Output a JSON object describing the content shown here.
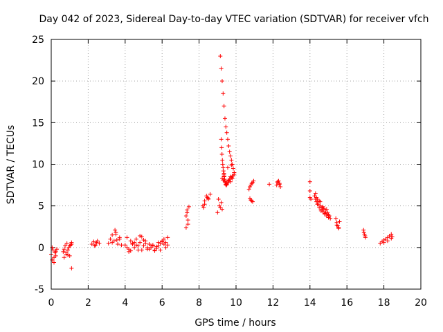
{
  "chart_data": {
    "type": "scatter",
    "title": "Day 042 of 2023, Sidereal Day-to-day VTEC variation (SDTVAR) for receiver vfch",
    "xlabel": "GPS time / hours",
    "ylabel": "SDTVAR / TECUs",
    "xlim": [
      0,
      20
    ],
    "ylim": [
      -5,
      25
    ],
    "x_ticks": [
      "0",
      "2",
      "4",
      "6",
      "8",
      "10",
      "12",
      "14",
      "16",
      "18",
      "20"
    ],
    "y_ticks": [
      "-5",
      "0",
      "5",
      "10",
      "15",
      "20",
      "25"
    ],
    "grid": true,
    "marker": "+",
    "color": "#ff0000",
    "series": [
      {
        "name": "SDTVAR",
        "x": [
          0.0,
          0.05,
          0.1,
          0.15,
          0.2,
          0.25,
          0.3,
          0.05,
          0.15,
          0.25,
          0.65,
          0.7,
          0.75,
          0.8,
          0.85,
          0.9,
          0.95,
          1.0,
          1.05,
          1.1,
          0.7,
          0.8,
          0.9,
          1.0,
          1.1,
          2.2,
          2.3,
          2.4,
          2.5,
          2.6,
          2.35,
          2.45,
          3.1,
          3.2,
          3.3,
          3.4,
          3.5,
          3.6,
          3.7,
          3.8,
          3.3,
          3.5,
          3.7,
          3.45,
          3.55,
          4.0,
          4.1,
          4.2,
          4.3,
          4.4,
          4.5,
          4.6,
          4.7,
          4.8,
          4.9,
          5.0,
          5.1,
          5.2,
          5.3,
          5.4,
          5.5,
          5.6,
          5.7,
          5.8,
          5.9,
          6.0,
          6.1,
          6.2,
          6.3,
          4.1,
          4.3,
          4.5,
          4.7,
          4.9,
          5.1,
          5.3,
          5.5,
          5.7,
          5.9,
          6.1,
          6.3,
          4.2,
          4.6,
          5.0,
          5.4,
          5.8,
          6.2,
          4.4,
          4.8,
          5.2,
          5.6,
          6.0,
          1.1,
          7.3,
          7.35,
          7.4,
          7.45,
          7.3,
          7.4,
          7.35,
          8.2,
          8.3,
          8.4,
          8.5,
          8.6,
          8.3,
          8.5,
          8.25,
          8.45,
          9.0,
          9.1,
          9.2,
          9.25,
          9.05,
          9.15,
          9.15,
          9.2,
          9.25,
          9.3,
          9.35,
          9.4,
          9.45,
          9.5,
          9.55,
          9.6,
          9.65,
          9.7,
          9.75,
          9.8,
          9.85,
          9.9,
          9.2,
          9.22,
          9.24,
          9.26,
          9.28,
          9.3,
          9.32,
          9.34,
          9.36,
          9.38,
          9.4,
          9.42,
          9.44,
          9.46,
          9.48,
          9.5,
          9.55,
          9.6,
          9.65,
          9.7,
          9.75,
          9.8,
          9.85,
          9.9,
          9.25,
          9.3,
          9.35,
          9.4,
          9.5,
          9.6,
          9.7,
          9.8,
          9.35,
          9.55,
          9.75,
          10.7,
          10.8,
          10.9,
          10.95,
          10.75,
          10.85,
          10.75,
          10.8,
          10.85,
          10.9,
          11.8,
          12.2,
          12.25,
          12.3,
          12.35,
          12.4,
          12.25,
          12.35,
          14.0,
          14.0,
          14.0,
          14.05,
          14.25,
          14.3,
          14.35,
          14.4,
          14.45,
          14.5,
          14.55,
          14.6,
          14.65,
          14.7,
          14.75,
          14.8,
          14.85,
          14.9,
          14.95,
          15.0,
          15.05,
          15.1,
          14.3,
          14.4,
          14.5,
          14.6,
          14.7,
          14.8,
          14.9,
          15.0,
          14.35,
          14.55,
          14.75,
          14.95,
          15.4,
          15.45,
          15.5,
          15.55,
          15.6,
          15.45,
          15.55,
          16.9,
          16.95,
          17.0,
          16.92,
          16.98,
          17.8,
          17.9,
          18.0,
          18.1,
          18.2,
          18.3,
          18.4,
          18.45,
          18.0,
          18.2,
          18.4
        ],
        "y": [
          -0.8,
          -1.5,
          -0.3,
          -1.8,
          -0.6,
          -1.0,
          -0.2,
          0.0,
          -1.2,
          -0.5,
          -0.5,
          -1.2,
          0.2,
          -0.8,
          0.5,
          -0.3,
          0.0,
          -1.0,
          0.3,
          0.6,
          -0.2,
          -0.6,
          -0.9,
          0.2,
          0.4,
          0.4,
          0.7,
          0.3,
          0.8,
          0.5,
          0.2,
          0.6,
          0.5,
          1.0,
          1.5,
          0.8,
          1.8,
          0.4,
          1.2,
          0.3,
          0.6,
          1.6,
          1.0,
          2.1,
          0.9,
          0.3,
          1.2,
          -0.2,
          0.8,
          0.5,
          0.0,
          1.0,
          -0.3,
          0.6,
          1.3,
          0.2,
          0.8,
          -0.2,
          0.4,
          0.0,
          0.2,
          -0.4,
          -0.1,
          0.2,
          0.5,
          0.8,
          1.0,
          0.6,
          0.3,
          0.0,
          -0.4,
          0.6,
          0.2,
          -0.3,
          0.5,
          -0.2,
          0.3,
          0.1,
          -0.3,
          0.4,
          1.2,
          -0.5,
          0.3,
          0.9,
          0.2,
          0.6,
          0.0,
          0.4,
          1.4,
          0.0,
          -0.3,
          0.7,
          -2.5,
          2.4,
          4.5,
          3.3,
          4.9,
          3.8,
          2.8,
          4.2,
          5.0,
          5.6,
          6.2,
          5.8,
          6.4,
          5.2,
          5.9,
          4.8,
          6.0,
          4.2,
          5.0,
          5.4,
          4.6,
          5.8,
          4.8,
          23.0,
          21.5,
          20.0,
          18.5,
          17.0,
          15.5,
          14.5,
          13.8,
          13.0,
          12.2,
          11.5,
          11.0,
          10.5,
          10.0,
          9.5,
          9.0,
          13.0,
          12.0,
          11.2,
          10.5,
          10.0,
          9.6,
          9.2,
          8.8,
          8.5,
          8.2,
          8.0,
          7.8,
          7.6,
          7.5,
          7.5,
          7.6,
          7.8,
          8.0,
          8.2,
          8.5,
          8.4,
          8.3,
          8.6,
          8.8,
          8.3,
          8.1,
          8.6,
          7.9,
          7.7,
          8.1,
          7.9,
          8.6,
          8.9,
          9.6,
          9.9,
          7.0,
          7.5,
          7.8,
          8.0,
          7.3,
          7.7,
          5.9,
          5.7,
          5.6,
          5.5,
          7.6,
          7.5,
          7.8,
          8.0,
          7.6,
          7.3,
          7.9,
          7.7,
          7.9,
          6.8,
          6.0,
          5.8,
          6.2,
          5.8,
          5.5,
          5.8,
          5.2,
          4.8,
          5.0,
          4.6,
          4.8,
          4.3,
          4.5,
          4.0,
          4.2,
          3.8,
          4.0,
          3.6,
          3.8,
          3.5,
          6.5,
          5.2,
          5.6,
          4.4,
          4.9,
          4.1,
          4.6,
          3.9,
          6.0,
          5.5,
          4.7,
          4.2,
          3.5,
          3.0,
          2.6,
          2.4,
          3.1,
          2.7,
          2.3,
          2.1,
          1.6,
          1.2,
          1.8,
          1.4,
          0.5,
          0.7,
          0.9,
          1.0,
          1.2,
          1.4,
          1.6,
          1.3,
          0.6,
          0.8,
          1.1
        ]
      }
    ]
  }
}
